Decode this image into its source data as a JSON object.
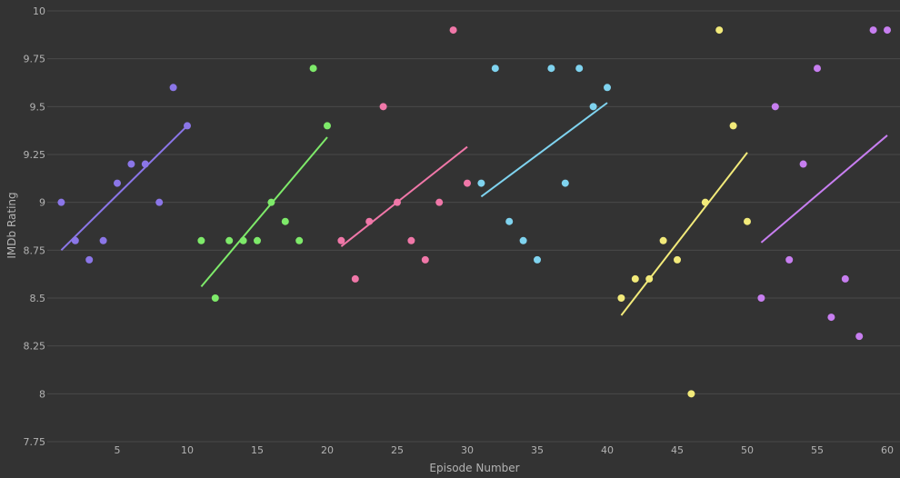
{
  "chart_data": {
    "type": "scatter",
    "title": "",
    "xlabel": "Episode Number",
    "ylabel": "IMDb Rating",
    "xlim": [
      0,
      60
    ],
    "ylim": [
      7.75,
      10
    ],
    "grid": true,
    "x_ticks": [
      "5",
      "10",
      "15",
      "20",
      "25",
      "30",
      "35",
      "40",
      "45",
      "50",
      "55",
      "60"
    ],
    "y_ticks": [
      "7.75",
      "8",
      "8.25",
      "8.5",
      "8.75",
      "9",
      "9.25",
      "9.5",
      "9.75",
      "10"
    ],
    "series": [
      {
        "color": "#8b76e8",
        "x": [
          1,
          2,
          3,
          4,
          5,
          6,
          7,
          8,
          9,
          10
        ],
        "values": [
          9.0,
          8.8,
          8.7,
          8.8,
          9.1,
          9.2,
          9.2,
          9.0,
          9.6,
          9.4
        ],
        "trend": [
          [
            1,
            8.75
          ],
          [
            10,
            9.4
          ]
        ]
      },
      {
        "color": "#7eea6a",
        "x": [
          11,
          12,
          13,
          14,
          15,
          16,
          17,
          18,
          19,
          20
        ],
        "values": [
          8.8,
          8.5,
          8.8,
          8.8,
          8.8,
          9.0,
          8.9,
          8.8,
          9.7,
          9.4
        ],
        "trend": [
          [
            11,
            8.56
          ],
          [
            20,
            9.34
          ]
        ]
      },
      {
        "color": "#f077a8",
        "x": [
          21,
          22,
          23,
          24,
          25,
          26,
          27,
          28,
          29,
          30
        ],
        "values": [
          8.8,
          8.6,
          8.9,
          9.5,
          9.0,
          8.8,
          8.7,
          9.0,
          9.9,
          9.1
        ],
        "trend": [
          [
            21,
            8.77
          ],
          [
            30,
            9.29
          ]
        ]
      },
      {
        "color": "#7fd3ef",
        "x": [
          31,
          32,
          33,
          34,
          35,
          36,
          37,
          38,
          39,
          40
        ],
        "values": [
          9.1,
          9.7,
          8.9,
          8.8,
          8.7,
          9.7,
          9.1,
          9.7,
          9.5,
          9.6
        ],
        "trend": [
          [
            31,
            9.03
          ],
          [
            40,
            9.52
          ]
        ]
      },
      {
        "color": "#f2ea7a",
        "x": [
          41,
          42,
          43,
          44,
          45,
          46,
          47,
          48,
          49,
          50
        ],
        "values": [
          8.5,
          8.6,
          8.6,
          8.8,
          8.7,
          8.0,
          9.0,
          9.9,
          9.4,
          8.9
        ],
        "trend": [
          [
            41,
            8.41
          ],
          [
            50,
            9.26
          ]
        ]
      },
      {
        "color": "#c77ef0",
        "x": [
          51,
          52,
          53,
          54,
          55,
          56,
          57,
          58,
          59,
          60
        ],
        "values": [
          8.5,
          9.5,
          8.7,
          9.2,
          9.7,
          8.4,
          8.6,
          8.3,
          9.9,
          9.9
        ],
        "trend": [
          [
            51,
            8.79
          ],
          [
            60,
            9.35
          ]
        ]
      }
    ]
  }
}
